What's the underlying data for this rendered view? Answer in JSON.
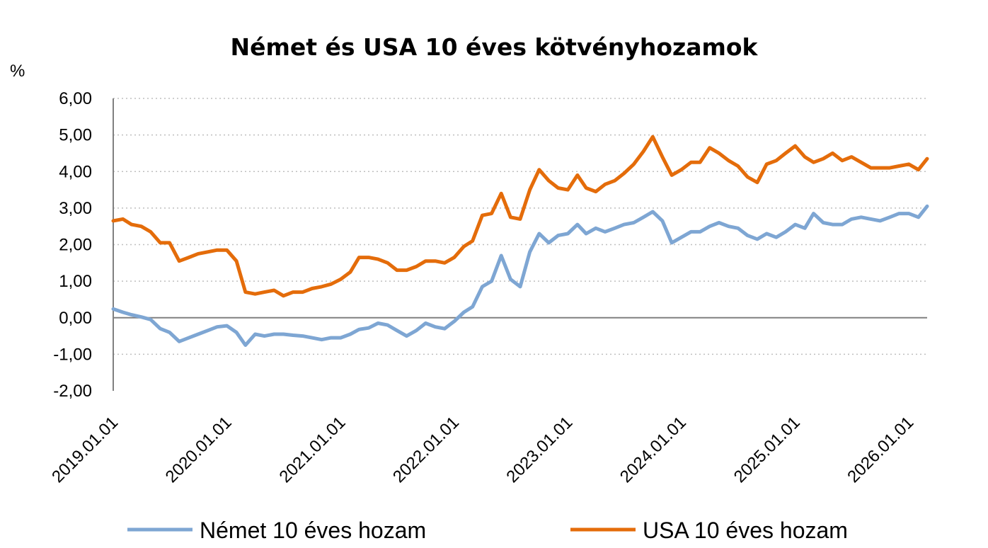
{
  "chart_data": {
    "type": "line",
    "title": "Német és USA 10 éves kötvényhozamok",
    "ylabel": "%",
    "xlabel": "",
    "ylim": [
      -2,
      6
    ],
    "yticks": [
      "6,00",
      "5,00",
      "4,00",
      "3,00",
      "2,00",
      "1,00",
      "0,00",
      "-1,00",
      "-2,00"
    ],
    "ytick_values": [
      6,
      5,
      4,
      3,
      2,
      1,
      0,
      -1,
      -2
    ],
    "xlim": [
      "2019.01.01",
      "2026.03.01"
    ],
    "xticks": [
      "2019.01.01",
      "2020.01.01",
      "2021.01.01",
      "2022.01.01",
      "2023.01.01",
      "2024.01.01",
      "2025.01.01",
      "2026.01.01"
    ],
    "grid": true,
    "legend_position": "bottom",
    "series": [
      {
        "name": "Német 10 éves hozam",
        "color": "#7ea6d3",
        "points": [
          [
            "2019.01.01",
            0.24
          ],
          [
            "2019.02.01",
            0.15
          ],
          [
            "2019.03.01",
            0.08
          ],
          [
            "2019.04.01",
            0.02
          ],
          [
            "2019.05.01",
            -0.05
          ],
          [
            "2019.06.01",
            -0.3
          ],
          [
            "2019.07.01",
            -0.4
          ],
          [
            "2019.08.01",
            -0.65
          ],
          [
            "2019.09.01",
            -0.55
          ],
          [
            "2019.10.01",
            -0.45
          ],
          [
            "2019.11.01",
            -0.35
          ],
          [
            "2019.12.01",
            -0.25
          ],
          [
            "2020.01.01",
            -0.22
          ],
          [
            "2020.02.01",
            -0.4
          ],
          [
            "2020.03.01",
            -0.75
          ],
          [
            "2020.04.01",
            -0.45
          ],
          [
            "2020.05.01",
            -0.5
          ],
          [
            "2020.06.01",
            -0.45
          ],
          [
            "2020.07.01",
            -0.45
          ],
          [
            "2020.08.01",
            -0.48
          ],
          [
            "2020.09.01",
            -0.5
          ],
          [
            "2020.10.01",
            -0.55
          ],
          [
            "2020.11.01",
            -0.6
          ],
          [
            "2020.12.01",
            -0.55
          ],
          [
            "2021.01.01",
            -0.55
          ],
          [
            "2021.02.01",
            -0.45
          ],
          [
            "2021.03.01",
            -0.32
          ],
          [
            "2021.04.01",
            -0.28
          ],
          [
            "2021.05.01",
            -0.15
          ],
          [
            "2021.06.01",
            -0.2
          ],
          [
            "2021.07.01",
            -0.35
          ],
          [
            "2021.08.01",
            -0.5
          ],
          [
            "2021.09.01",
            -0.35
          ],
          [
            "2021.10.01",
            -0.15
          ],
          [
            "2021.11.01",
            -0.25
          ],
          [
            "2021.12.01",
            -0.3
          ],
          [
            "2022.01.01",
            -0.1
          ],
          [
            "2022.02.01",
            0.15
          ],
          [
            "2022.03.01",
            0.3
          ],
          [
            "2022.04.01",
            0.85
          ],
          [
            "2022.05.01",
            1.0
          ],
          [
            "2022.06.01",
            1.7
          ],
          [
            "2022.07.01",
            1.05
          ],
          [
            "2022.08.01",
            0.85
          ],
          [
            "2022.09.01",
            1.8
          ],
          [
            "2022.10.01",
            2.3
          ],
          [
            "2022.11.01",
            2.05
          ],
          [
            "2022.12.01",
            2.25
          ],
          [
            "2023.01.01",
            2.3
          ],
          [
            "2023.02.01",
            2.55
          ],
          [
            "2023.03.01",
            2.3
          ],
          [
            "2023.04.01",
            2.45
          ],
          [
            "2023.05.01",
            2.35
          ],
          [
            "2023.06.01",
            2.45
          ],
          [
            "2023.07.01",
            2.55
          ],
          [
            "2023.08.01",
            2.6
          ],
          [
            "2023.09.01",
            2.75
          ],
          [
            "2023.10.01",
            2.9
          ],
          [
            "2023.11.01",
            2.65
          ],
          [
            "2023.12.01",
            2.05
          ],
          [
            "2024.01.01",
            2.2
          ],
          [
            "2024.02.01",
            2.35
          ],
          [
            "2024.03.01",
            2.35
          ],
          [
            "2024.04.01",
            2.5
          ],
          [
            "2024.05.01",
            2.6
          ],
          [
            "2024.06.01",
            2.5
          ],
          [
            "2024.07.01",
            2.45
          ],
          [
            "2024.08.01",
            2.25
          ],
          [
            "2024.09.01",
            2.15
          ],
          [
            "2024.10.01",
            2.3
          ],
          [
            "2024.11.01",
            2.2
          ],
          [
            "2024.12.01",
            2.35
          ],
          [
            "2025.01.01",
            2.55
          ],
          [
            "2025.02.01",
            2.45
          ],
          [
            "2025.03.01",
            2.85
          ],
          [
            "2025.04.01",
            2.6
          ],
          [
            "2025.05.01",
            2.55
          ],
          [
            "2025.06.01",
            2.55
          ],
          [
            "2025.07.01",
            2.7
          ],
          [
            "2025.08.01",
            2.75
          ],
          [
            "2025.09.01",
            2.7
          ],
          [
            "2025.10.01",
            2.65
          ],
          [
            "2025.11.01",
            2.75
          ],
          [
            "2025.12.01",
            2.85
          ],
          [
            "2026.01.01",
            2.85
          ],
          [
            "2026.02.01",
            2.75
          ],
          [
            "2026.03.01",
            3.05
          ]
        ]
      },
      {
        "name": "USA 10 éves hozam",
        "color": "#e46c0a",
        "points": [
          [
            "2019.01.01",
            2.65
          ],
          [
            "2019.02.01",
            2.7
          ],
          [
            "2019.03.01",
            2.55
          ],
          [
            "2019.04.01",
            2.5
          ],
          [
            "2019.05.01",
            2.35
          ],
          [
            "2019.06.01",
            2.05
          ],
          [
            "2019.07.01",
            2.05
          ],
          [
            "2019.08.01",
            1.55
          ],
          [
            "2019.09.01",
            1.65
          ],
          [
            "2019.10.01",
            1.75
          ],
          [
            "2019.11.01",
            1.8
          ],
          [
            "2019.12.01",
            1.85
          ],
          [
            "2020.01.01",
            1.85
          ],
          [
            "2020.02.01",
            1.55
          ],
          [
            "2020.03.01",
            0.7
          ],
          [
            "2020.04.01",
            0.65
          ],
          [
            "2020.05.01",
            0.7
          ],
          [
            "2020.06.01",
            0.75
          ],
          [
            "2020.07.01",
            0.6
          ],
          [
            "2020.08.01",
            0.7
          ],
          [
            "2020.09.01",
            0.7
          ],
          [
            "2020.10.01",
            0.8
          ],
          [
            "2020.11.01",
            0.85
          ],
          [
            "2020.12.01",
            0.92
          ],
          [
            "2021.01.01",
            1.05
          ],
          [
            "2021.02.01",
            1.25
          ],
          [
            "2021.03.01",
            1.65
          ],
          [
            "2021.04.01",
            1.65
          ],
          [
            "2021.05.01",
            1.6
          ],
          [
            "2021.06.01",
            1.5
          ],
          [
            "2021.07.01",
            1.3
          ],
          [
            "2021.08.01",
            1.3
          ],
          [
            "2021.09.01",
            1.4
          ],
          [
            "2021.10.01",
            1.55
          ],
          [
            "2021.11.01",
            1.55
          ],
          [
            "2021.12.01",
            1.5
          ],
          [
            "2022.01.01",
            1.65
          ],
          [
            "2022.02.01",
            1.95
          ],
          [
            "2022.03.01",
            2.1
          ],
          [
            "2022.04.01",
            2.8
          ],
          [
            "2022.05.01",
            2.85
          ],
          [
            "2022.06.01",
            3.4
          ],
          [
            "2022.07.01",
            2.75
          ],
          [
            "2022.08.01",
            2.7
          ],
          [
            "2022.09.01",
            3.5
          ],
          [
            "2022.10.01",
            4.05
          ],
          [
            "2022.11.01",
            3.75
          ],
          [
            "2022.12.01",
            3.55
          ],
          [
            "2023.01.01",
            3.5
          ],
          [
            "2023.02.01",
            3.9
          ],
          [
            "2023.03.01",
            3.55
          ],
          [
            "2023.04.01",
            3.45
          ],
          [
            "2023.05.01",
            3.65
          ],
          [
            "2023.06.01",
            3.75
          ],
          [
            "2023.07.01",
            3.95
          ],
          [
            "2023.08.01",
            4.2
          ],
          [
            "2023.09.01",
            4.55
          ],
          [
            "2023.10.01",
            4.95
          ],
          [
            "2023.11.01",
            4.4
          ],
          [
            "2023.12.01",
            3.9
          ],
          [
            "2024.01.01",
            4.05
          ],
          [
            "2024.02.01",
            4.25
          ],
          [
            "2024.03.01",
            4.25
          ],
          [
            "2024.04.01",
            4.65
          ],
          [
            "2024.05.01",
            4.5
          ],
          [
            "2024.06.01",
            4.3
          ],
          [
            "2024.07.01",
            4.15
          ],
          [
            "2024.08.01",
            3.85
          ],
          [
            "2024.09.01",
            3.7
          ],
          [
            "2024.10.01",
            4.2
          ],
          [
            "2024.11.01",
            4.3
          ],
          [
            "2024.12.01",
            4.5
          ],
          [
            "2025.01.01",
            4.7
          ],
          [
            "2025.02.01",
            4.4
          ],
          [
            "2025.03.01",
            4.25
          ],
          [
            "2025.04.01",
            4.35
          ],
          [
            "2025.05.01",
            4.5
          ],
          [
            "2025.06.01",
            4.3
          ],
          [
            "2025.07.01",
            4.4
          ],
          [
            "2025.08.01",
            4.25
          ],
          [
            "2025.09.01",
            4.1
          ],
          [
            "2025.10.01",
            4.1
          ],
          [
            "2025.11.01",
            4.1
          ],
          [
            "2025.12.01",
            4.15
          ],
          [
            "2026.01.01",
            4.2
          ],
          [
            "2026.02.01",
            4.05
          ],
          [
            "2026.03.01",
            4.35
          ]
        ]
      }
    ]
  }
}
